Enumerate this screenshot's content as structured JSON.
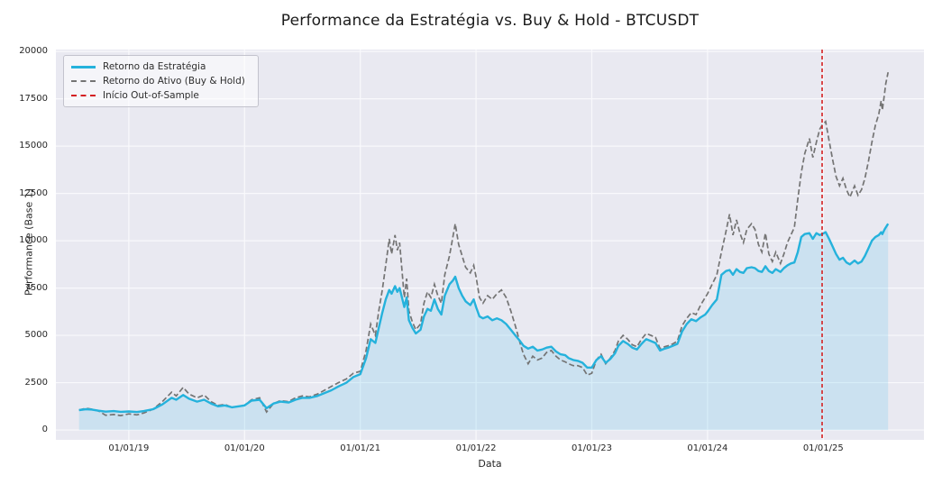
{
  "title": "Performance da Estratégia vs. Buy & Hold - BTCUSDT",
  "colors": {
    "strategy": "#25b2dc",
    "asset": "#747474",
    "oos": "#d42022",
    "fill": "rgba(137,207,240,0.30)",
    "axes_bg": "#e9e9f1",
    "grid": "#f9f9fc",
    "text": "#262626"
  },
  "axes": {
    "xlabel": "Data",
    "ylabel": "Performance (Base 1)",
    "xlim": [
      2018.37,
      2025.87
    ],
    "ylim": [
      -520,
      20100
    ],
    "x_ticks": [
      {
        "value": 2019,
        "label": "01/01/19"
      },
      {
        "value": 2020,
        "label": "01/01/20"
      },
      {
        "value": 2021,
        "label": "01/01/21"
      },
      {
        "value": 2022,
        "label": "01/01/22"
      },
      {
        "value": 2023,
        "label": "01/01/23"
      },
      {
        "value": 2024,
        "label": "01/01/24"
      },
      {
        "value": 2025,
        "label": "01/01/25"
      }
    ],
    "y_ticks": [
      {
        "value": 0,
        "label": "0"
      },
      {
        "value": 2500,
        "label": "2500"
      },
      {
        "value": 5000,
        "label": "5000"
      },
      {
        "value": 7500,
        "label": "7500"
      },
      {
        "value": 10000,
        "label": "10000"
      },
      {
        "value": 12500,
        "label": "12500"
      },
      {
        "value": 15000,
        "label": "15000"
      },
      {
        "value": 17500,
        "label": "17500"
      },
      {
        "value": 20000,
        "label": "20000"
      }
    ]
  },
  "legend": {
    "items": [
      {
        "label": "Retorno da Estratégia",
        "style": "solid",
        "color": "#25b2dc"
      },
      {
        "label": "Retorno do Ativo (Buy & Hold)",
        "style": "dashed",
        "color": "#747474"
      },
      {
        "label": "Início Out-of-Sample",
        "style": "dashed",
        "color": "#d42022"
      }
    ]
  },
  "chart_data": {
    "type": "line",
    "title": "Performance da Estratégia vs. Buy & Hold - BTCUSDT",
    "xlabel": "Data",
    "ylabel": "Performance (Base 1)",
    "grid": true,
    "legend_position": "upper-left",
    "x": [
      2018.57,
      2018.63,
      2018.68,
      2018.74,
      2018.8,
      2018.87,
      2018.93,
      2019,
      2019.07,
      2019.13,
      2019.21,
      2019.29,
      2019.37,
      2019.41,
      2019.47,
      2019.52,
      2019.59,
      2019.65,
      2019.71,
      2019.77,
      2019.83,
      2019.89,
      2019.95,
      2020,
      2020.06,
      2020.13,
      2020.19,
      2020.25,
      2020.31,
      2020.38,
      2020.44,
      2020.5,
      2020.56,
      2020.63,
      2020.69,
      2020.75,
      2020.81,
      2020.88,
      2020.94,
      2021,
      2021.05,
      2021.09,
      2021.13,
      2021.16,
      2021.19,
      2021.22,
      2021.25,
      2021.27,
      2021.3,
      2021.32,
      2021.34,
      2021.38,
      2021.4,
      2021.42,
      2021.45,
      2021.48,
      2021.52,
      2021.55,
      2021.58,
      2021.61,
      2021.64,
      2021.67,
      2021.7,
      2021.73,
      2021.77,
      2021.8,
      2021.82,
      2021.85,
      2021.88,
      2021.91,
      2021.95,
      2021.98,
      2022,
      2022.03,
      2022.06,
      2022.1,
      2022.14,
      2022.18,
      2022.22,
      2022.26,
      2022.3,
      2022.34,
      2022.38,
      2022.41,
      2022.45,
      2022.49,
      2022.53,
      2022.57,
      2022.61,
      2022.65,
      2022.69,
      2022.73,
      2022.77,
      2022.8,
      2022.84,
      2022.88,
      2022.92,
      2022.96,
      2023,
      2023.04,
      2023.08,
      2023.12,
      2023.16,
      2023.2,
      2023.23,
      2023.27,
      2023.31,
      2023.35,
      2023.39,
      2023.43,
      2023.47,
      2023.51,
      2023.55,
      2023.59,
      2023.63,
      2023.66,
      2023.7,
      2023.74,
      2023.78,
      2023.82,
      2023.86,
      2023.9,
      2023.94,
      2023.98,
      2024,
      2024.04,
      2024.08,
      2024.12,
      2024.16,
      2024.19,
      2024.22,
      2024.25,
      2024.28,
      2024.31,
      2024.34,
      2024.38,
      2024.41,
      2024.44,
      2024.47,
      2024.5,
      2024.53,
      2024.56,
      2024.59,
      2024.63,
      2024.66,
      2024.69,
      2024.72,
      2024.75,
      2024.78,
      2024.81,
      2024.84,
      2024.88,
      2024.91,
      2024.94,
      2024.97,
      2024.99,
      2025.02,
      2025.05,
      2025.08,
      2025.11,
      2025.14,
      2025.17,
      2025.2,
      2025.23,
      2025.27,
      2025.3,
      2025.33,
      2025.36,
      2025.39,
      2025.42,
      2025.45,
      2025.48,
      2025.5,
      2025.51,
      2025.53,
      2025.54,
      2025.56
    ],
    "series": [
      {
        "name": "Retorno da Estratégia",
        "color": "#25b2dc",
        "style": "solid",
        "fill_to_zero": true,
        "values": [
          1050,
          1100,
          1080,
          1020,
          970,
          1000,
          960,
          980,
          950,
          1000,
          1100,
          1350,
          1700,
          1600,
          1850,
          1650,
          1500,
          1600,
          1400,
          1250,
          1300,
          1200,
          1250,
          1300,
          1550,
          1600,
          1150,
          1400,
          1500,
          1450,
          1600,
          1700,
          1700,
          1800,
          1950,
          2100,
          2300,
          2500,
          2800,
          2950,
          3800,
          4800,
          4600,
          5400,
          6200,
          6900,
          7400,
          7200,
          7600,
          7300,
          7500,
          6500,
          7000,
          5800,
          5400,
          5100,
          5300,
          6000,
          6400,
          6300,
          6900,
          6400,
          6100,
          7100,
          7700,
          7900,
          8100,
          7500,
          7100,
          6800,
          6600,
          6900,
          6500,
          6000,
          5900,
          6000,
          5800,
          5900,
          5800,
          5600,
          5300,
          5000,
          4700,
          4450,
          4300,
          4400,
          4200,
          4250,
          4350,
          4400,
          4150,
          4000,
          3950,
          3800,
          3700,
          3650,
          3550,
          3300,
          3300,
          3700,
          3900,
          3550,
          3750,
          4050,
          4450,
          4700,
          4550,
          4350,
          4250,
          4550,
          4800,
          4700,
          4600,
          4200,
          4300,
          4350,
          4450,
          4550,
          5200,
          5600,
          5850,
          5750,
          5950,
          6100,
          6250,
          6600,
          6900,
          8200,
          8400,
          8450,
          8200,
          8500,
          8350,
          8300,
          8550,
          8600,
          8550,
          8400,
          8350,
          8650,
          8400,
          8300,
          8500,
          8350,
          8550,
          8700,
          8800,
          8850,
          9400,
          10200,
          10350,
          10400,
          10100,
          10400,
          10300,
          10350,
          10450,
          10100,
          9700,
          9300,
          9000,
          9100,
          8850,
          8750,
          8950,
          8800,
          8900,
          9200,
          9600,
          10000,
          10200,
          10300,
          10450,
          10350,
          10600,
          10700,
          10900
        ]
      },
      {
        "name": "Retorno do Ativo (Buy & Hold)",
        "color": "#747474",
        "style": "dashed",
        "fill_to_zero": false,
        "values": [
          1050,
          1150,
          1100,
          1000,
          780,
          820,
          760,
          850,
          800,
          900,
          1100,
          1500,
          2000,
          1800,
          2250,
          1900,
          1700,
          1850,
          1500,
          1300,
          1350,
          1200,
          1250,
          1300,
          1600,
          1700,
          950,
          1400,
          1550,
          1500,
          1700,
          1800,
          1750,
          1900,
          2100,
          2300,
          2500,
          2700,
          3000,
          3100,
          4200,
          5600,
          5000,
          6300,
          7400,
          8700,
          10100,
          9300,
          10300,
          9500,
          9900,
          7000,
          8000,
          6300,
          5700,
          5300,
          5600,
          6700,
          7300,
          7000,
          7700,
          7100,
          6700,
          8200,
          9200,
          10200,
          10900,
          9800,
          9200,
          8600,
          8300,
          8700,
          8100,
          7000,
          6700,
          7100,
          6900,
          7200,
          7400,
          7000,
          6300,
          5500,
          4600,
          4000,
          3500,
          3900,
          3700,
          3800,
          4100,
          4200,
          3900,
          3700,
          3600,
          3500,
          3400,
          3400,
          3300,
          2900,
          3000,
          3700,
          4000,
          3500,
          3800,
          4200,
          4700,
          5000,
          4800,
          4500,
          4400,
          4800,
          5100,
          5000,
          4900,
          4300,
          4400,
          4450,
          4550,
          4700,
          5500,
          5900,
          6200,
          6100,
          6600,
          7000,
          7200,
          7700,
          8200,
          9400,
          10500,
          11400,
          10300,
          11100,
          10400,
          9900,
          10600,
          10900,
          10600,
          9800,
          9400,
          10400,
          9300,
          8900,
          9400,
          8800,
          9300,
          9900,
          10300,
          10700,
          12200,
          13600,
          14600,
          15400,
          14400,
          15200,
          15900,
          16100,
          16300,
          15300,
          14300,
          13400,
          12900,
          13300,
          12700,
          12300,
          12900,
          12400,
          12700,
          13300,
          14200,
          15200,
          16100,
          16700,
          17400,
          16900,
          17800,
          18300,
          18900
        ]
      }
    ],
    "oos_line": {
      "label": "Início Out-of-Sample",
      "x": 2024.99,
      "color": "#d42022"
    }
  }
}
